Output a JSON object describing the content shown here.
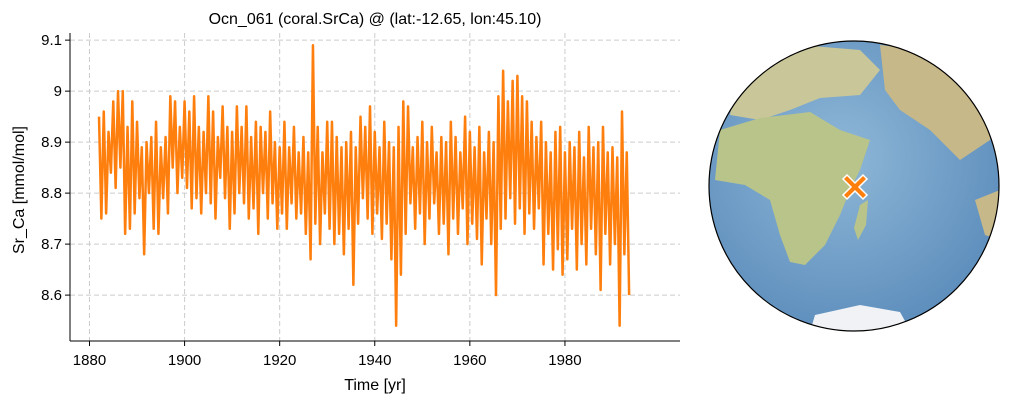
{
  "chart_data": {
    "type": "line",
    "title": "Ocn_061 (coral.SrCa) @ (lat:-12.65, lon:45.10)",
    "xlabel": "Time [yr]",
    "ylabel": "Sr_Ca [mmol/mol]",
    "xlim": [
      1875.9,
      2004.2
    ],
    "ylim": [
      8.51,
      9.114
    ],
    "xticks": [
      1880,
      1900,
      1920,
      1940,
      1960,
      1980
    ],
    "yticks": [
      8.6,
      8.7,
      8.8,
      8.9,
      9.0,
      9.1
    ],
    "grid": true,
    "series": [
      {
        "color": "#ff7f0e",
        "x": [
          1882,
          1882.5,
          1883,
          1883.5,
          1884,
          1884.5,
          1885,
          1885.5,
          1886,
          1886.5,
          1887,
          1887.5,
          1888,
          1888.5,
          1889,
          1889.5,
          1890,
          1890.5,
          1891,
          1891.5,
          1892,
          1892.5,
          1893,
          1893.5,
          1894,
          1894.5,
          1895,
          1895.5,
          1896,
          1896.5,
          1897,
          1897.5,
          1898,
          1898.5,
          1899,
          1899.5,
          1900,
          1900.5,
          1901,
          1901.5,
          1902,
          1902.5,
          1903,
          1903.5,
          1904,
          1904.5,
          1905,
          1905.5,
          1906,
          1906.5,
          1907,
          1907.5,
          1908,
          1908.5,
          1909,
          1909.5,
          1910,
          1910.5,
          1911,
          1911.5,
          1912,
          1912.5,
          1913,
          1913.5,
          1914,
          1914.5,
          1915,
          1915.5,
          1916,
          1916.5,
          1917,
          1917.5,
          1918,
          1918.5,
          1919,
          1919.5,
          1920,
          1920.5,
          1921,
          1921.5,
          1922,
          1922.5,
          1923,
          1923.5,
          1924,
          1924.5,
          1925,
          1925.5,
          1926,
          1926.5,
          1927,
          1927.5,
          1928,
          1928.5,
          1929,
          1929.5,
          1930,
          1930.5,
          1931,
          1931.5,
          1932,
          1932.5,
          1933,
          1933.5,
          1934,
          1934.5,
          1935,
          1935.5,
          1936,
          1936.5,
          1937,
          1937.5,
          1938,
          1938.5,
          1939,
          1939.5,
          1940,
          1940.5,
          1941,
          1941.5,
          1942,
          1942.5,
          1943,
          1943.5,
          1944,
          1944.5,
          1945,
          1945.5,
          1946,
          1946.5,
          1947,
          1947.5,
          1948,
          1948.5,
          1949,
          1949.5,
          1950,
          1950.5,
          1951,
          1951.5,
          1952,
          1952.5,
          1953,
          1953.5,
          1954,
          1954.5,
          1955,
          1955.5,
          1956,
          1956.5,
          1957,
          1957.5,
          1958,
          1958.5,
          1959,
          1959.5,
          1960,
          1960.5,
          1961,
          1961.5,
          1962,
          1962.5,
          1963,
          1963.5,
          1964,
          1964.5,
          1965,
          1965.5,
          1966,
          1966.5,
          1967,
          1967.5,
          1968,
          1968.5,
          1969,
          1969.5,
          1970,
          1970.5,
          1971,
          1971.5,
          1972,
          1972.5,
          1973,
          1973.5,
          1974,
          1974.5,
          1975,
          1975.5,
          1976,
          1976.5,
          1977,
          1977.5,
          1978,
          1978.5,
          1979,
          1979.5,
          1980,
          1980.5,
          1981,
          1981.5,
          1982,
          1982.5,
          1983,
          1983.5,
          1984,
          1984.5,
          1985,
          1985.5,
          1986,
          1986.5,
          1987,
          1987.5,
          1988,
          1988.5,
          1989,
          1989.5,
          1990,
          1990.5,
          1991,
          1991.5,
          1992,
          1992.5,
          1993,
          1993.5
        ],
        "values": [
          8.95,
          8.75,
          8.96,
          8.76,
          8.92,
          8.84,
          8.98,
          8.81,
          9.0,
          8.85,
          9.0,
          8.72,
          8.93,
          8.73,
          8.98,
          8.76,
          8.94,
          8.79,
          8.89,
          8.68,
          8.9,
          8.8,
          8.91,
          8.73,
          8.94,
          8.72,
          8.89,
          8.79,
          8.91,
          8.76,
          8.99,
          8.85,
          8.98,
          8.8,
          8.93,
          8.83,
          8.98,
          8.81,
          8.96,
          8.77,
          8.99,
          8.79,
          8.93,
          8.76,
          8.92,
          8.8,
          8.99,
          8.78,
          8.96,
          8.75,
          8.91,
          8.83,
          8.97,
          8.79,
          8.93,
          8.73,
          8.92,
          8.76,
          8.97,
          8.8,
          8.93,
          8.78,
          8.97,
          8.75,
          8.91,
          8.77,
          8.94,
          8.72,
          8.93,
          8.8,
          8.92,
          8.75,
          8.96,
          8.78,
          8.9,
          8.73,
          8.89,
          8.76,
          8.94,
          8.73,
          8.89,
          8.78,
          8.93,
          8.75,
          8.88,
          8.76,
          8.91,
          8.72,
          8.88,
          8.67,
          9.09,
          8.74,
          8.93,
          8.7,
          8.88,
          8.76,
          8.94,
          8.73,
          8.94,
          8.7,
          8.91,
          8.72,
          8.89,
          8.68,
          8.9,
          8.73,
          8.92,
          8.62,
          8.89,
          8.74,
          8.95,
          8.79,
          8.93,
          8.75,
          8.97,
          8.72,
          8.92,
          8.76,
          8.89,
          8.71,
          8.94,
          8.74,
          8.9,
          8.67,
          8.89,
          8.54,
          8.93,
          8.64,
          8.98,
          8.72,
          8.97,
          8.78,
          8.89,
          8.73,
          8.91,
          8.76,
          8.94,
          8.7,
          8.9,
          8.75,
          8.93,
          8.78,
          8.88,
          8.72,
          8.91,
          8.74,
          8.9,
          8.68,
          8.94,
          8.75,
          8.91,
          8.72,
          8.88,
          8.77,
          8.95,
          8.7,
          8.92,
          8.74,
          8.89,
          8.71,
          8.93,
          8.66,
          8.88,
          8.75,
          8.92,
          8.7,
          8.9,
          8.6,
          8.99,
          8.73,
          9.04,
          8.75,
          8.98,
          8.79,
          9.02,
          8.74,
          9.03,
          8.77,
          8.99,
          8.72,
          8.98,
          8.76,
          8.94,
          8.73,
          8.91,
          8.77,
          8.94,
          8.66,
          8.9,
          8.72,
          8.88,
          8.65,
          8.92,
          8.69,
          8.93,
          8.64,
          8.88,
          8.67,
          8.9,
          8.73,
          8.89,
          8.65,
          8.92,
          8.7,
          8.87,
          8.66,
          8.93,
          8.73,
          8.89,
          8.68,
          8.9,
          8.61,
          8.93,
          8.72,
          8.88,
          8.66,
          8.89,
          8.7,
          8.87,
          8.54,
          8.96,
          8.68,
          8.88,
          8.6
        ]
      }
    ]
  }
}
